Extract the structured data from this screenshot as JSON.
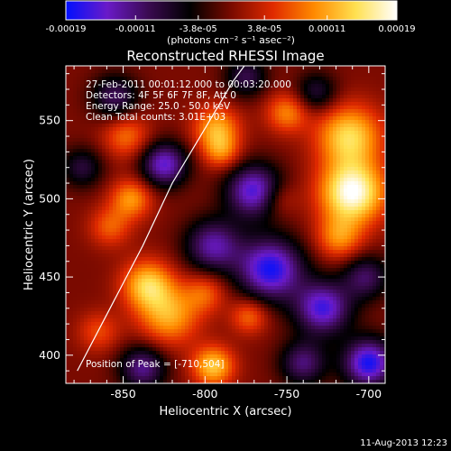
{
  "chart_data": {
    "type": "heatmap",
    "title": "Reconstructed RHESSI Image",
    "xlabel": "Heliocentric X (arcsec)",
    "ylabel": "Heliocentric Y (arcsec)",
    "xlim": [
      -885,
      -690
    ],
    "ylim": [
      382,
      585
    ],
    "x_ticks": [
      -850,
      -800,
      -750,
      -700
    ],
    "y_ticks": [
      400,
      450,
      500,
      550
    ],
    "x_tick_labels": [
      "-850",
      "-800",
      "-750",
      "-700"
    ],
    "y_tick_labels": [
      "400",
      "450",
      "500",
      "550"
    ],
    "colorbar": {
      "ticks": [
        -0.00019,
        -0.00011,
        -3.8e-05,
        3.8e-05,
        0.00011,
        0.00019
      ],
      "tick_labels": [
        "-0.00019",
        "-0.00011",
        "-3.8e-05",
        "3.8e-05",
        "0.00011",
        "0.00019"
      ],
      "unit_label": "(photons cm⁻² s⁻¹ asec⁻²)",
      "range": [
        -0.00019,
        0.00019
      ],
      "colors": [
        "#0010ff",
        "#6a1ac8",
        "#3a0a50",
        "#000000",
        "#7a0a00",
        "#e02a00",
        "#ff8a00",
        "#ffe050",
        "#ffffff"
      ]
    },
    "annotations": [
      "27-Feb-2011 00:01:12.000 to 00:03:20.000",
      "Detectors: 4F 5F 6F 7F 8F, Att 0",
      "Energy Range: 25.0 - 50.0 keV",
      "Clean     Total counts: 3.01E+03"
    ],
    "peak_label": "Position of Peak = [-710,504]",
    "limb_points": [
      [
        -878,
        390
      ],
      [
        -858,
        430
      ],
      [
        -838,
        470
      ],
      [
        -820,
        510
      ],
      [
        -800,
        545
      ],
      [
        -783,
        575
      ],
      [
        -776,
        585
      ]
    ],
    "sources": [
      {
        "x": -710,
        "y": 504,
        "amp": 0.00019,
        "w": 14
      },
      {
        "x": -712,
        "y": 540,
        "amp": 0.00014,
        "w": 14
      },
      {
        "x": -718,
        "y": 475,
        "amp": 9e-05,
        "w": 10
      },
      {
        "x": -835,
        "y": 445,
        "amp": 0.00013,
        "w": 11
      },
      {
        "x": -822,
        "y": 425,
        "amp": 0.00011,
        "w": 13
      },
      {
        "x": -845,
        "y": 500,
        "amp": 0.0001,
        "w": 9
      },
      {
        "x": -848,
        "y": 540,
        "amp": 8e-05,
        "w": 10
      },
      {
        "x": -793,
        "y": 545,
        "amp": 0.00011,
        "w": 10
      },
      {
        "x": -790,
        "y": 530,
        "amp": 8e-05,
        "w": 8
      },
      {
        "x": -750,
        "y": 555,
        "amp": 9e-05,
        "w": 9
      },
      {
        "x": -773,
        "y": 425,
        "amp": 8e-05,
        "w": 8
      },
      {
        "x": -795,
        "y": 393,
        "amp": 0.00013,
        "w": 9
      },
      {
        "x": -858,
        "y": 482,
        "amp": 7e-05,
        "w": 9
      },
      {
        "x": -800,
        "y": 440,
        "amp": 7e-05,
        "w": 9
      },
      {
        "x": -755,
        "y": 500,
        "amp": 5e-05,
        "w": 8
      },
      {
        "x": -865,
        "y": 415,
        "amp": 6e-05,
        "w": 9
      },
      {
        "x": -825,
        "y": 522,
        "amp": -0.00015,
        "w": 10
      },
      {
        "x": -770,
        "y": 505,
        "amp": -0.00016,
        "w": 12
      },
      {
        "x": -760,
        "y": 455,
        "amp": -0.00018,
        "w": 14
      },
      {
        "x": -728,
        "y": 430,
        "amp": -0.00016,
        "w": 12
      },
      {
        "x": -795,
        "y": 470,
        "amp": -0.00013,
        "w": 12
      },
      {
        "x": -700,
        "y": 395,
        "amp": -0.00018,
        "w": 11
      },
      {
        "x": -740,
        "y": 395,
        "amp": -0.00011,
        "w": 10
      },
      {
        "x": -855,
        "y": 565,
        "amp": -0.0001,
        "w": 10
      },
      {
        "x": -702,
        "y": 450,
        "amp": -0.0001,
        "w": 10
      },
      {
        "x": -775,
        "y": 578,
        "amp": -9e-05,
        "w": 9
      },
      {
        "x": -732,
        "y": 568,
        "amp": -8e-05,
        "w": 9
      },
      {
        "x": -838,
        "y": 392,
        "amp": -0.00012,
        "w": 10
      },
      {
        "x": -875,
        "y": 520,
        "amp": -8e-05,
        "w": 9
      }
    ]
  },
  "footer": {
    "date": "11-Aug-2013 12:23"
  }
}
